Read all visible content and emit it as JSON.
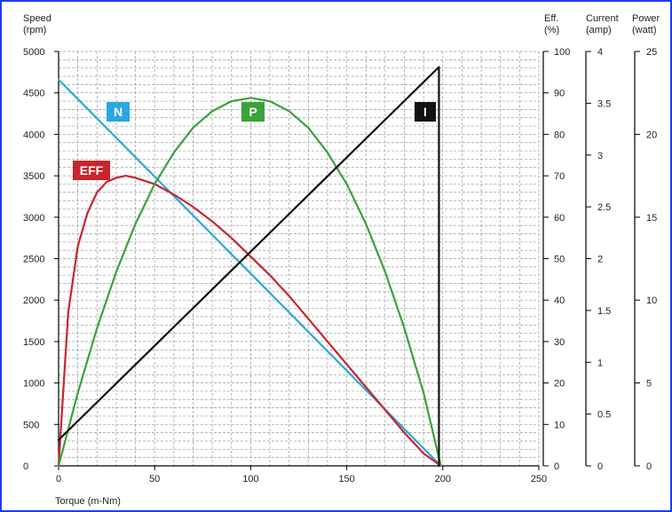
{
  "chart_data": {
    "type": "line",
    "x_label": "Torque (m-Nm)",
    "x_range": [
      0,
      250
    ],
    "x_ticks": [
      "0",
      "50",
      "100",
      "150",
      "200",
      "250"
    ],
    "grid": true,
    "axes": {
      "speed": {
        "title_line1": "Speed",
        "title_line2": "(rpm)",
        "range": [
          0,
          5000
        ],
        "ticks": [
          "0",
          "500",
          "1000",
          "1500",
          "2000",
          "2500",
          "3000",
          "3500",
          "4000",
          "4500",
          "5000"
        ]
      },
      "eff": {
        "title_line1": "Eff.",
        "title_line2": "(%)",
        "range": [
          0,
          100
        ],
        "ticks": [
          "0",
          "10",
          "20",
          "30",
          "40",
          "50",
          "60",
          "70",
          "80",
          "90",
          "100"
        ]
      },
      "current": {
        "title_line1": "Current",
        "title_line2": "(amp)",
        "range": [
          0,
          4
        ],
        "ticks": [
          "0",
          "0.5",
          "1",
          "1.5",
          "2",
          "2.5",
          "3",
          "3.5",
          "4"
        ]
      },
      "power": {
        "title_line1": "Power",
        "title_line2": "(watt)",
        "range": [
          0,
          25
        ],
        "ticks": [
          "0",
          "5",
          "10",
          "15",
          "20",
          "25"
        ]
      }
    },
    "series": [
      {
        "name": "N",
        "axis": "speed",
        "color": "#2aa7e0",
        "x": [
          0,
          50,
          100,
          150,
          199
        ],
        "y": [
          4660,
          3490,
          2320,
          1150,
          0
        ]
      },
      {
        "name": "EFF",
        "axis": "eff",
        "color": "#c8252c",
        "x": [
          0,
          5,
          10,
          15,
          20,
          25,
          30,
          35,
          40,
          50,
          60,
          70,
          80,
          90,
          100,
          110,
          120,
          130,
          140,
          150,
          160,
          170,
          180,
          190,
          199
        ],
        "y": [
          0,
          37,
          53,
          61,
          66,
          68.5,
          69.5,
          70,
          69.5,
          68,
          65.5,
          62.5,
          59,
          55,
          50.5,
          46,
          41,
          35.5,
          30,
          24.5,
          19,
          13.5,
          8,
          3,
          0
        ]
      },
      {
        "name": "P",
        "axis": "power",
        "color": "#3aa23a",
        "x": [
          0,
          10,
          20,
          30,
          40,
          50,
          60,
          70,
          80,
          90,
          100,
          110,
          120,
          130,
          140,
          150,
          160,
          170,
          180,
          190,
          199
        ],
        "y": [
          0,
          4.4,
          8.3,
          11.7,
          14.6,
          17.0,
          18.9,
          20.4,
          21.4,
          22.0,
          22.2,
          22.0,
          21.4,
          20.4,
          18.9,
          17.0,
          14.6,
          11.7,
          8.3,
          4.4,
          0
        ]
      },
      {
        "name": "I",
        "axis": "current",
        "color": "#111111",
        "x": [
          0,
          198,
          198
        ],
        "y": [
          0.25,
          3.85,
          0
        ]
      }
    ]
  }
}
